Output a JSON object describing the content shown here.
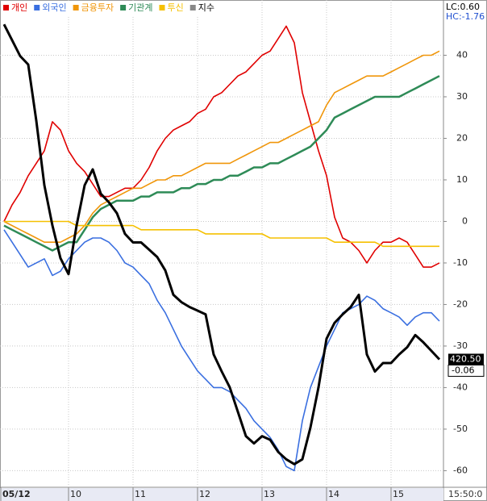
{
  "chart_data": {
    "type": "line",
    "categories": [
      "05/12",
      null,
      null,
      null,
      null,
      null,
      null,
      null,
      "10",
      null,
      null,
      null,
      null,
      null,
      null,
      null,
      "11",
      null,
      null,
      null,
      null,
      null,
      null,
      null,
      "12",
      null,
      null,
      null,
      null,
      null,
      null,
      null,
      "13",
      null,
      null,
      null,
      null,
      null,
      null,
      null,
      "14",
      null,
      null,
      null,
      null,
      null,
      null,
      null,
      "15",
      null,
      null,
      null,
      null,
      null,
      null
    ],
    "series": [
      {
        "name": "개인",
        "color": "#e00000",
        "values": [
          0,
          4,
          7,
          11,
          14,
          17,
          24,
          22,
          17,
          14,
          12,
          9,
          6,
          6,
          7,
          8,
          8,
          10,
          13,
          17,
          20,
          22,
          23,
          24,
          26,
          27,
          30,
          31,
          33,
          35,
          36,
          38,
          40,
          41,
          44,
          47,
          43,
          31,
          24,
          17,
          11,
          1,
          -4,
          -5,
          -7,
          -10,
          -7,
          -5,
          -5,
          -4,
          -5,
          -8,
          -11,
          -11,
          -10
        ]
      },
      {
        "name": "외국인",
        "color": "#3a6fe0",
        "values": [
          -2,
          -5,
          -8,
          -11,
          -10,
          -9,
          -13,
          -12,
          -9,
          -7,
          -5,
          -4,
          -4,
          -5,
          -7,
          -10,
          -11,
          -13,
          -15,
          -19,
          -22,
          -26,
          -30,
          -33,
          -36,
          -38,
          -40,
          -40,
          -41,
          -43,
          -45,
          -48,
          -50,
          -52,
          -55,
          -59,
          -60,
          -48,
          -40,
          -35,
          -30,
          -26,
          -22,
          -21,
          -20,
          -18,
          -19,
          -21,
          -22,
          -23,
          -25,
          -23,
          -22,
          -22,
          -24
        ]
      },
      {
        "name": "금융투자",
        "color": "#f0960a",
        "values": [
          0,
          -1,
          -2,
          -3,
          -4,
          -5,
          -5,
          -5,
          -4,
          -3,
          -1,
          2,
          4,
          5,
          6,
          7,
          8,
          8,
          9,
          10,
          10,
          11,
          11,
          12,
          13,
          14,
          14,
          14,
          14,
          15,
          16,
          17,
          18,
          19,
          19,
          20,
          21,
          22,
          23,
          24,
          28,
          31,
          32,
          33,
          34,
          35,
          35,
          35,
          36,
          37,
          38,
          39,
          40,
          40,
          41
        ]
      },
      {
        "name": "기관계",
        "color": "#2e8b57",
        "values": [
          -1,
          -2,
          -3,
          -4,
          -5,
          -6,
          -7,
          -6,
          -5,
          -5,
          -2,
          1,
          3,
          4,
          5,
          5,
          5,
          6,
          6,
          7,
          7,
          7,
          8,
          8,
          9,
          9,
          10,
          10,
          11,
          11,
          12,
          13,
          13,
          14,
          14,
          15,
          16,
          17,
          18,
          20,
          22,
          25,
          26,
          27,
          28,
          29,
          30,
          30,
          30,
          30,
          31,
          32,
          33,
          34,
          35
        ]
      },
      {
        "name": "투신",
        "color": "#f5c000",
        "values": [
          0,
          0,
          0,
          0,
          0,
          0,
          0,
          0,
          0,
          -1,
          -1,
          -1,
          -1,
          -1,
          -1,
          -1,
          -1,
          -2,
          -2,
          -2,
          -2,
          -2,
          -2,
          -2,
          -2,
          -3,
          -3,
          -3,
          -3,
          -3,
          -3,
          -3,
          -3,
          -4,
          -4,
          -4,
          -4,
          -4,
          -4,
          -4,
          -4,
          -5,
          -5,
          -5,
          -5,
          -5,
          -5,
          -6,
          -6,
          -6,
          -6,
          -6,
          -6,
          -6,
          -6
        ]
      },
      {
        "name": "지수",
        "color": "#000000",
        "axis": "y2",
        "values": [
          448.0,
          446.7,
          445.4,
          444.7,
          440.1,
          434.8,
          431.5,
          428.8,
          427.5,
          431.5,
          434.8,
          436.1,
          434.1,
          433.4,
          432.5,
          430.8,
          430.1,
          430.1,
          429.5,
          428.9,
          427.8,
          425.8,
          425.2,
          424.8,
          424.5,
          424.2,
          420.9,
          419.5,
          418.2,
          416.2,
          414.2,
          413.6,
          414.2,
          413.9,
          412.9,
          412.3,
          411.9,
          412.3,
          414.9,
          418.2,
          422.2,
          423.5,
          424.2,
          424.8,
          425.8,
          420.9,
          419.5,
          420.2,
          420.2,
          420.9,
          421.5,
          422.5,
          421.9,
          421.2,
          420.5
        ],
        "value_labels": [
          null,
          null,
          null,
          null,
          null,
          null,
          null,
          null,
          null,
          null,
          null,
          null,
          null,
          null,
          null,
          null,
          null,
          null,
          null,
          null,
          null,
          null,
          null,
          null,
          null,
          null,
          null,
          null,
          null,
          null,
          null,
          null,
          null,
          null,
          null,
          null,
          null,
          null,
          null,
          null,
          null,
          null,
          null,
          null,
          null,
          null,
          null,
          null,
          null,
          null,
          null,
          null,
          null,
          null,
          "420.50"
        ]
      }
    ],
    "ylim": [
      -64,
      53.3
    ],
    "yticks": [
      40,
      30,
      20,
      10,
      0,
      -10,
      -20,
      -30,
      -40,
      -50,
      -60
    ],
    "y2lim": [
      410,
      450
    ],
    "grid": true,
    "lc_label": "LC:0.60",
    "hc_label": "HC:-1.76",
    "change_label": "-0.06",
    "time_label": "15:50:0"
  }
}
